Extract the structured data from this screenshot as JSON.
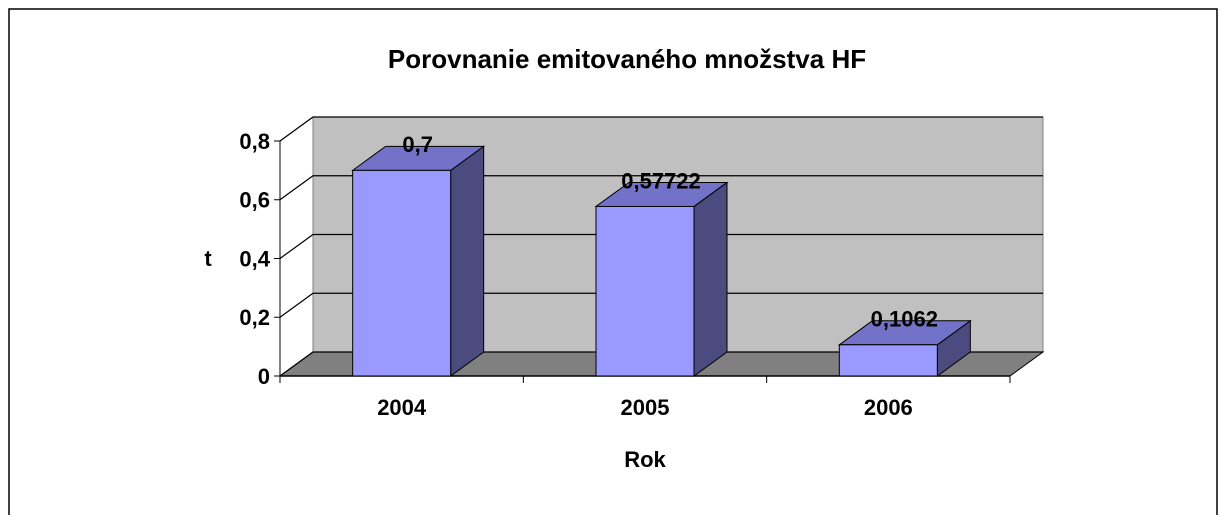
{
  "chart_data": {
    "type": "bar3d",
    "title": "Porovnanie emitovaného množstva HF",
    "x_label": "Rok",
    "y_label": "t",
    "categories": [
      "2004",
      "2005",
      "2006"
    ],
    "values": [
      0.7,
      0.57722,
      0.1062
    ],
    "value_labels": [
      "0,7",
      "0,57722",
      "0,1062"
    ],
    "color": "#9999ff",
    "ylim": [
      0,
      0.8
    ],
    "yticks": [
      0,
      {
        "value": 0.2,
        "label": "0,2"
      },
      {
        "value": 0.4,
        "label": "0,4"
      },
      {
        "value": 0.6,
        "label": "0,6"
      },
      {
        "value": 0.8,
        "label": "0,8"
      }
    ],
    "grid": true
  }
}
